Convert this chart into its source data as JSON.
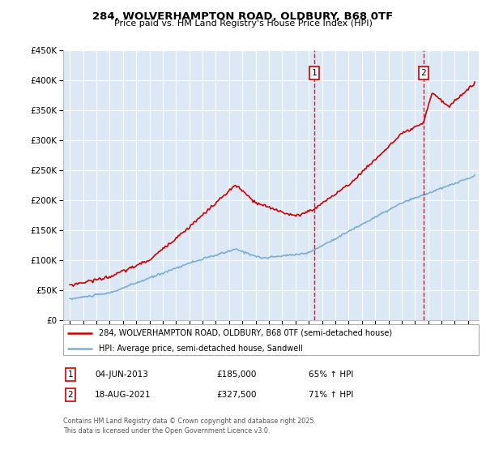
{
  "title": "284, WOLVERHAMPTON ROAD, OLDBURY, B68 0TF",
  "subtitle": "Price paid vs. HM Land Registry's House Price Index (HPI)",
  "legend_label_red": "284, WOLVERHAMPTON ROAD, OLDBURY, B68 0TF (semi-detached house)",
  "legend_label_blue": "HPI: Average price, semi-detached house, Sandwell",
  "footer_line1": "Contains HM Land Registry data © Crown copyright and database right 2025.",
  "footer_line2": "This data is licensed under the Open Government Licence v3.0.",
  "marker1_date": "04-JUN-2013",
  "marker1_price": "£185,000",
  "marker1_hpi": "65% ↑ HPI",
  "marker2_date": "18-AUG-2021",
  "marker2_price": "£327,500",
  "marker2_hpi": "71% ↑ HPI",
  "vline1_x": 2013.42,
  "vline2_x": 2021.63,
  "ylim": [
    0,
    450000
  ],
  "xlim_start": 1994.5,
  "xlim_end": 2025.8,
  "background_color": "#ffffff",
  "plot_bg_color": "#dce8f5",
  "red_color": "#cc0000",
  "blue_color": "#7aadd4",
  "grid_color": "#ffffff"
}
